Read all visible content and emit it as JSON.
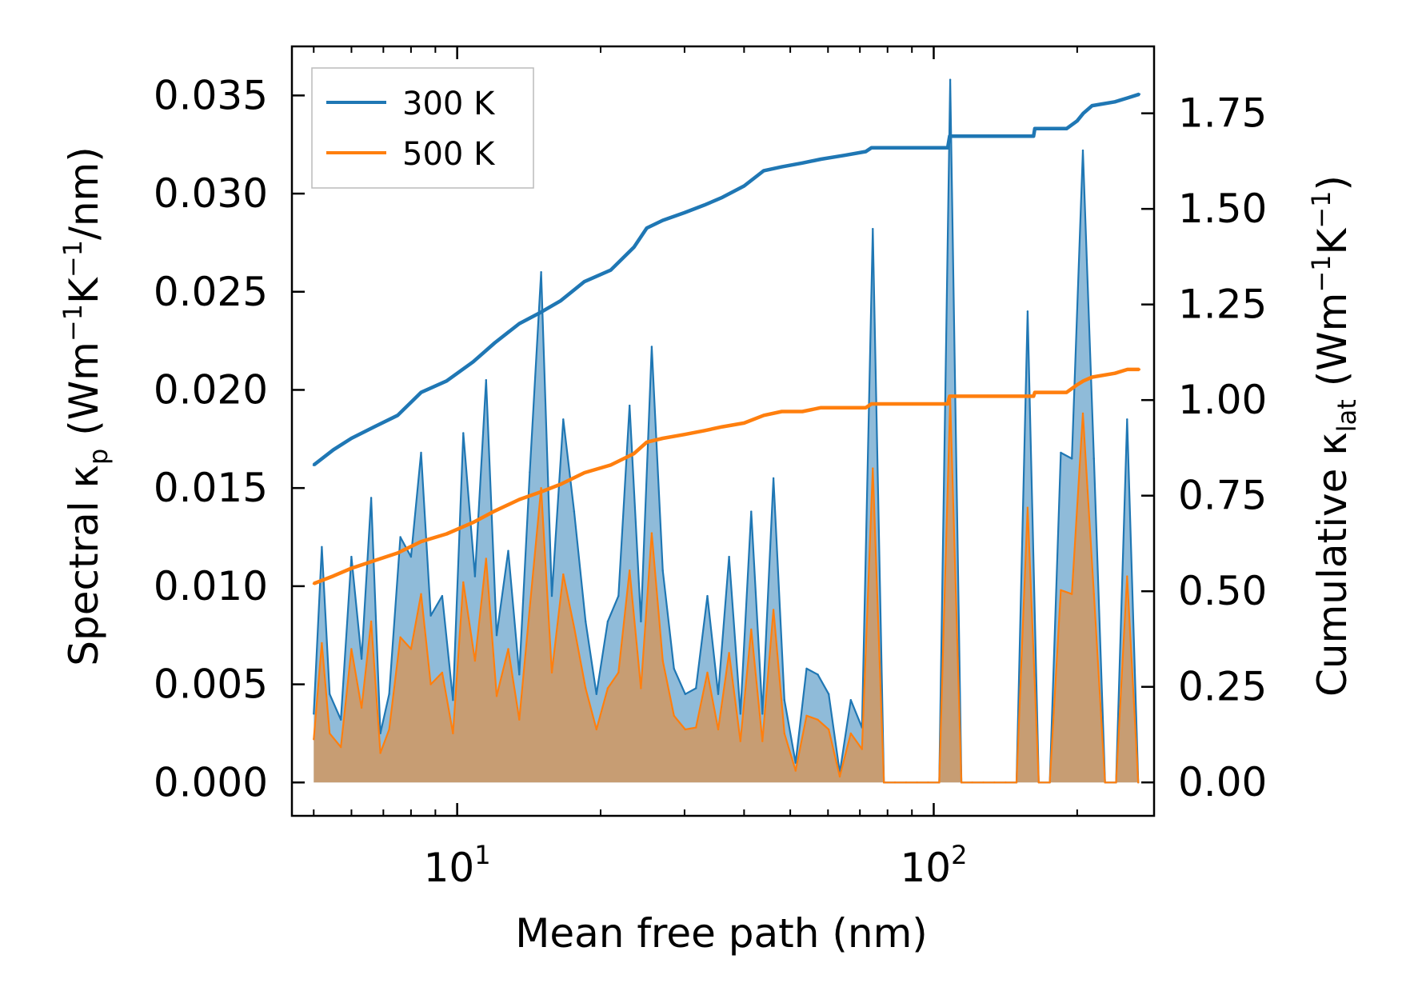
{
  "chart_data": {
    "type": "line",
    "xlabel": "Mean free path (nm)",
    "xscale": "log",
    "xlim": [
      4.5,
      290
    ],
    "x_tick_labels": [
      {
        "value": 10,
        "base": "10",
        "exp": "1"
      },
      {
        "value": 100,
        "base": "10",
        "exp": "2"
      }
    ],
    "ylabel_left": {
      "pre": "Spectral κ",
      "sub": "p",
      "post": " (Wm",
      "sup1": "−1",
      "mid": "K",
      "sup2": "−1",
      "end": "/nm)"
    },
    "ylabel_right": {
      "pre": "Cumulative κ",
      "sub": "lat",
      "post": " (Wm",
      "sup1": "−1",
      "mid": "K",
      "sup2": "−1",
      "end": ")"
    },
    "ylim_left": [
      -0.0017,
      0.0375
    ],
    "ylim_right": [
      -0.0874,
      1.925
    ],
    "left_ticks": [
      0.0,
      0.005,
      0.01,
      0.015,
      0.02,
      0.025,
      0.03,
      0.035
    ],
    "left_tick_labels": [
      "0.000",
      "0.005",
      "0.010",
      "0.015",
      "0.020",
      "0.025",
      "0.030",
      "0.035"
    ],
    "right_ticks": [
      0.0,
      0.25,
      0.5,
      0.75,
      1.0,
      1.25,
      1.5,
      1.75
    ],
    "right_tick_labels": [
      "0.00",
      "0.25",
      "0.50",
      "0.75",
      "1.00",
      "1.25",
      "1.50",
      "1.75"
    ],
    "legend": [
      {
        "label": "300 K",
        "color": "#1f77b4"
      },
      {
        "label": "500 K",
        "color": "#ff7f0e"
      }
    ],
    "legend_position": "top-left",
    "series": [
      {
        "name": "300 K spectral",
        "axis": "left",
        "kind": "filled-spikes",
        "color": "#1f77b4",
        "x": [
          5.0,
          5.2,
          5.4,
          5.7,
          6.0,
          6.3,
          6.6,
          6.9,
          7.2,
          7.6,
          8.0,
          8.4,
          8.8,
          9.3,
          9.8,
          10.3,
          10.9,
          11.5,
          12.1,
          12.8,
          13.5,
          14.2,
          15.0,
          15.8,
          16.7,
          17.6,
          18.6,
          19.6,
          20.7,
          21.8,
          23.0,
          24.3,
          25.6,
          27.0,
          28.5,
          30.1,
          31.7,
          33.5,
          35.3,
          37.2,
          39.3,
          41.4,
          43.7,
          46.1,
          48.6,
          51.3,
          54.1,
          57.1,
          60.2,
          63.5,
          67.0,
          70.7,
          74.5,
          78.6,
          82.9,
          87.5,
          92.3,
          97.3,
          102.7,
          108.3,
          114.3,
          120.5,
          127.1,
          134.1,
          141.5,
          149.2,
          157.4,
          166.1,
          175.2,
          184.8,
          194.9,
          205.6,
          216.9,
          228.8,
          241.4,
          254.6,
          268.6
        ],
        "values": [
          0.0035,
          0.012,
          0.0045,
          0.0032,
          0.0115,
          0.0063,
          0.0145,
          0.0025,
          0.0045,
          0.0125,
          0.0115,
          0.0168,
          0.0085,
          0.0095,
          0.0042,
          0.0178,
          0.0105,
          0.0205,
          0.0075,
          0.0118,
          0.0055,
          0.0158,
          0.026,
          0.0095,
          0.0185,
          0.0138,
          0.0082,
          0.0045,
          0.0082,
          0.0095,
          0.0192,
          0.0082,
          0.0222,
          0.0108,
          0.0058,
          0.0045,
          0.0048,
          0.0095,
          0.0045,
          0.0115,
          0.0035,
          0.0138,
          0.0035,
          0.0155,
          0.0042,
          0.001,
          0.0058,
          0.0055,
          0.0045,
          0.0005,
          0.0042,
          0.0028,
          0.0282,
          0.0,
          0.0,
          0.0,
          0.0,
          0.0,
          0.0,
          0.0358,
          0.0,
          0.0,
          0.0,
          0.0,
          0.0,
          0.0,
          0.024,
          0.0,
          0.0,
          0.0168,
          0.0165,
          0.0322,
          0.0165,
          0.0,
          0.0,
          0.0185,
          0.0
        ]
      },
      {
        "name": "500 K spectral",
        "axis": "left",
        "kind": "filled-spikes",
        "color": "#ff7f0e",
        "x": [
          5.0,
          5.2,
          5.4,
          5.7,
          6.0,
          6.3,
          6.6,
          6.9,
          7.2,
          7.6,
          8.0,
          8.4,
          8.8,
          9.3,
          9.8,
          10.3,
          10.9,
          11.5,
          12.1,
          12.8,
          13.5,
          14.2,
          15.0,
          15.8,
          16.7,
          17.6,
          18.6,
          19.6,
          20.7,
          21.8,
          23.0,
          24.3,
          25.6,
          27.0,
          28.5,
          30.1,
          31.7,
          33.5,
          35.3,
          37.2,
          39.3,
          41.4,
          43.7,
          46.1,
          48.6,
          51.3,
          54.1,
          57.1,
          60.2,
          63.5,
          67.0,
          70.7,
          74.5,
          78.6,
          82.9,
          87.5,
          92.3,
          97.3,
          102.7,
          108.3,
          114.3,
          120.5,
          127.1,
          134.1,
          141.5,
          149.2,
          157.4,
          166.1,
          175.2,
          184.8,
          194.9,
          205.6,
          216.9,
          228.8,
          241.4,
          254.6,
          268.6
        ],
        "values": [
          0.0022,
          0.0071,
          0.0025,
          0.0018,
          0.0068,
          0.0038,
          0.0082,
          0.0015,
          0.0027,
          0.0074,
          0.0068,
          0.0096,
          0.005,
          0.0056,
          0.0025,
          0.0102,
          0.0062,
          0.0114,
          0.0044,
          0.0068,
          0.0032,
          0.0089,
          0.015,
          0.0056,
          0.0106,
          0.0079,
          0.0048,
          0.0027,
          0.0048,
          0.0056,
          0.0108,
          0.0048,
          0.0127,
          0.0062,
          0.0034,
          0.0027,
          0.0028,
          0.0056,
          0.0027,
          0.0066,
          0.0021,
          0.0078,
          0.0021,
          0.0088,
          0.0025,
          0.0006,
          0.0034,
          0.0032,
          0.0027,
          0.0003,
          0.0025,
          0.0017,
          0.016,
          0.0,
          0.0,
          0.0,
          0.0,
          0.0,
          0.0,
          0.0195,
          0.0,
          0.0,
          0.0,
          0.0,
          0.0,
          0.0,
          0.014,
          0.0,
          0.0,
          0.0098,
          0.0096,
          0.0188,
          0.0096,
          0.0,
          0.0,
          0.0105,
          0.0
        ]
      },
      {
        "name": "300 K",
        "axis": "right",
        "kind": "line",
        "color": "#1f77b4",
        "x": [
          5.0,
          5.5,
          6.0,
          6.7,
          7.5,
          8.4,
          9.5,
          10.8,
          12.0,
          13.5,
          15.0,
          16.5,
          18.5,
          21.0,
          23.5,
          25.0,
          27.0,
          30.0,
          33.0,
          36.0,
          40.0,
          44.0,
          48.0,
          53.0,
          58.0,
          65.0,
          72.0,
          74.0,
          90.0,
          107.0,
          108.0,
          130.0,
          162.0,
          163.0,
          190.0,
          200.0,
          206.0,
          215.0,
          240.0,
          255.0,
          270.0
        ],
        "values": [
          0.83,
          0.87,
          0.9,
          0.93,
          0.96,
          1.02,
          1.05,
          1.1,
          1.15,
          1.2,
          1.23,
          1.26,
          1.31,
          1.34,
          1.4,
          1.45,
          1.47,
          1.49,
          1.51,
          1.53,
          1.56,
          1.6,
          1.61,
          1.62,
          1.63,
          1.64,
          1.65,
          1.66,
          1.66,
          1.66,
          1.69,
          1.69,
          1.69,
          1.71,
          1.71,
          1.73,
          1.75,
          1.77,
          1.78,
          1.79,
          1.8
        ]
      },
      {
        "name": "500 K",
        "axis": "right",
        "kind": "line",
        "color": "#ff7f0e",
        "x": [
          5.0,
          5.5,
          6.0,
          6.7,
          7.5,
          8.4,
          9.5,
          10.8,
          12.0,
          13.5,
          15.0,
          16.5,
          18.5,
          21.0,
          23.5,
          25.0,
          27.0,
          30.0,
          33.0,
          36.0,
          40.0,
          44.0,
          48.0,
          53.0,
          58.0,
          65.0,
          72.0,
          74.0,
          90.0,
          107.0,
          108.0,
          130.0,
          162.0,
          163.0,
          190.0,
          200.0,
          206.0,
          215.0,
          240.0,
          255.0,
          270.0
        ],
        "values": [
          0.52,
          0.54,
          0.56,
          0.58,
          0.6,
          0.63,
          0.65,
          0.68,
          0.71,
          0.74,
          0.76,
          0.78,
          0.81,
          0.83,
          0.86,
          0.89,
          0.9,
          0.91,
          0.92,
          0.93,
          0.94,
          0.96,
          0.97,
          0.97,
          0.98,
          0.98,
          0.98,
          0.99,
          0.99,
          0.99,
          1.01,
          1.01,
          1.01,
          1.02,
          1.02,
          1.04,
          1.05,
          1.06,
          1.07,
          1.08,
          1.08
        ]
      }
    ]
  }
}
